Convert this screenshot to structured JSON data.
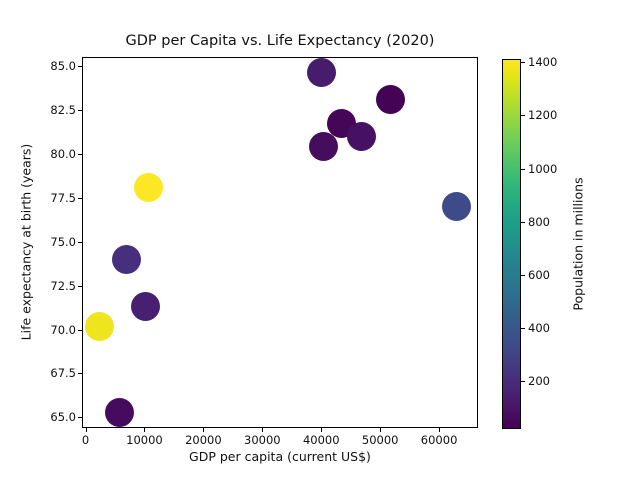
{
  "chart_data": {
    "type": "scatter",
    "title": "GDP per Capita vs. Life Expectancy (2020)",
    "xlabel": "GDP per capita (current US$)",
    "ylabel": "Life expectancy at birth (years)",
    "colorbar_label": "Population in millions",
    "grid": false,
    "legend_position": "colorbar-right",
    "xlim": [
      -600,
      66600
    ],
    "ylim": [
      64.4,
      85.5
    ],
    "x_ticks": [
      0,
      10000,
      20000,
      30000,
      40000,
      50000,
      60000
    ],
    "x_tick_labels": [
      "0",
      "10000",
      "20000",
      "30000",
      "40000",
      "50000",
      "60000"
    ],
    "y_ticks": [
      65.0,
      67.5,
      70.0,
      72.5,
      75.0,
      77.5,
      80.0,
      82.5,
      85.0
    ],
    "y_tick_labels": [
      "65.0",
      "67.5",
      "70.0",
      "72.5",
      "75.0",
      "77.5",
      "80.0",
      "82.5",
      "85.0"
    ],
    "colormap": "viridis",
    "colormap_stops": [
      "#440154",
      "#471365",
      "#482475",
      "#463480",
      "#414487",
      "#3b528b",
      "#355f8d",
      "#2f6c8e",
      "#2a788e",
      "#25848e",
      "#21918c",
      "#1e9c89",
      "#22a884",
      "#2fb47c",
      "#44bf70",
      "#5ec962",
      "#7ad151",
      "#9bd93c",
      "#bddf26",
      "#dfe318",
      "#fde725"
    ],
    "color_range": [
      20,
      1412
    ],
    "colorbar_ticks": [
      200,
      400,
      600,
      800,
      1000,
      1200,
      1400
    ],
    "colorbar_tick_labels": [
      "200",
      "400",
      "600",
      "800",
      "1000",
      "1200",
      "1400"
    ],
    "marker_diameter_px": 29,
    "points": [
      {
        "x": 40000,
        "y": 84.6,
        "value": 126
      },
      {
        "x": 51700,
        "y": 83.1,
        "value": 26
      },
      {
        "x": 43500,
        "y": 81.7,
        "value": 38
      },
      {
        "x": 46800,
        "y": 81.0,
        "value": 83
      },
      {
        "x": 40300,
        "y": 80.4,
        "value": 67
      },
      {
        "x": 63000,
        "y": 77.0,
        "value": 331
      },
      {
        "x": 10600,
        "y": 78.1,
        "value": 1412
      },
      {
        "x": 7000,
        "y": 74.0,
        "value": 213
      },
      {
        "x": 10100,
        "y": 71.3,
        "value": 144
      },
      {
        "x": 2400,
        "y": 70.2,
        "value": 1380
      },
      {
        "x": 5800,
        "y": 65.3,
        "value": 59
      }
    ]
  }
}
